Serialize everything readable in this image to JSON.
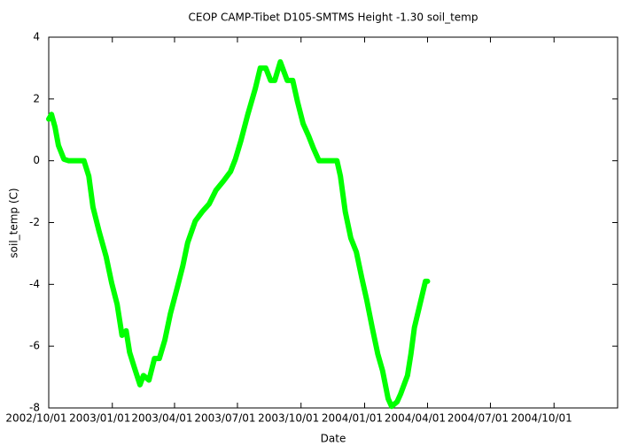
{
  "chart_data": {
    "type": "line",
    "title": "CEOP CAMP-Tibet D105-SMTMS Height -1.30 soil_temp",
    "xlabel": "Date",
    "ylabel": "soil_temp (C)",
    "x": [
      "2002/10/01",
      "2002/10/05",
      "2002/10/10",
      "2002/10/15",
      "2002/10/23",
      "2002/10/30",
      "2002/11/21",
      "2002/11/28",
      "2002/12/04",
      "2002/12/13",
      "2002/12/23",
      "2002/12/31",
      "2003/01/08",
      "2003/01/15",
      "2003/01/21",
      "2003/01/26",
      "2003/02/02",
      "2003/02/10",
      "2003/02/15",
      "2003/02/23",
      "2003/03/03",
      "2003/03/10",
      "2003/03/18",
      "2003/03/26",
      "2003/04/05",
      "2003/04/13",
      "2003/04/20",
      "2003/05/01",
      "2003/05/11",
      "2003/05/21",
      "2003/05/31",
      "2003/06/11",
      "2003/06/21",
      "2003/06/28",
      "2003/07/06",
      "2003/07/16",
      "2003/07/27",
      "2003/08/03",
      "2003/08/11",
      "2003/08/18",
      "2003/08/24",
      "2003/09/01",
      "2003/09/06",
      "2003/09/11",
      "2003/09/19",
      "2003/09/26",
      "2003/10/04",
      "2003/10/12",
      "2003/10/19",
      "2003/10/27",
      "2003/11/22",
      "2003/11/27",
      "2003/12/04",
      "2003/12/12",
      "2003/12/20",
      "2003/12/28",
      "2004/01/04",
      "2004/01/12",
      "2004/01/20",
      "2004/01/27",
      "2004/02/04",
      "2004/02/09",
      "2004/02/17",
      "2004/02/22",
      "2004/02/27",
      "2004/03/03",
      "2004/03/08",
      "2004/03/13",
      "2004/03/21",
      "2004/03/29",
      "2004/04/01"
    ],
    "series": [
      {
        "name": "soil_temp",
        "color": "#00ff00",
        "values": [
          1.35,
          1.5,
          1.1,
          0.5,
          0.05,
          0,
          0,
          -0.5,
          -1.5,
          -2.3,
          -3.1,
          -3.95,
          -4.65,
          -5.65,
          -5.5,
          -6.2,
          -6.7,
          -7.25,
          -6.95,
          -7.1,
          -6.4,
          -6.4,
          -5.8,
          -4.95,
          -4.1,
          -3.4,
          -2.65,
          -1.95,
          -1.65,
          -1.4,
          -0.95,
          -0.65,
          -0.35,
          0.05,
          0.65,
          1.5,
          2.35,
          3.0,
          3.0,
          2.6,
          2.6,
          3.2,
          2.9,
          2.6,
          2.6,
          1.9,
          1.2,
          0.8,
          0.4,
          0,
          0,
          -0.5,
          -1.65,
          -2.5,
          -2.95,
          -3.8,
          -4.5,
          -5.4,
          -6.25,
          -6.8,
          -7.7,
          -7.95,
          -7.8,
          -7.55,
          -7.25,
          -6.95,
          -6.25,
          -5.4,
          -4.65,
          -3.9,
          -3.9
        ]
      }
    ],
    "xlim": [
      "2002/10/01",
      "2005/01/01"
    ],
    "xticks": [
      "2002/10/01",
      "2003/01/01",
      "2003/04/01",
      "2003/07/01",
      "2003/10/01",
      "2004/01/01",
      "2004/04/01",
      "2004/07/01",
      "2004/10/01"
    ],
    "ylim": [
      -8,
      4
    ],
    "yticks": [
      -8,
      -6,
      -4,
      -2,
      0,
      2,
      4
    ],
    "grid": false
  }
}
